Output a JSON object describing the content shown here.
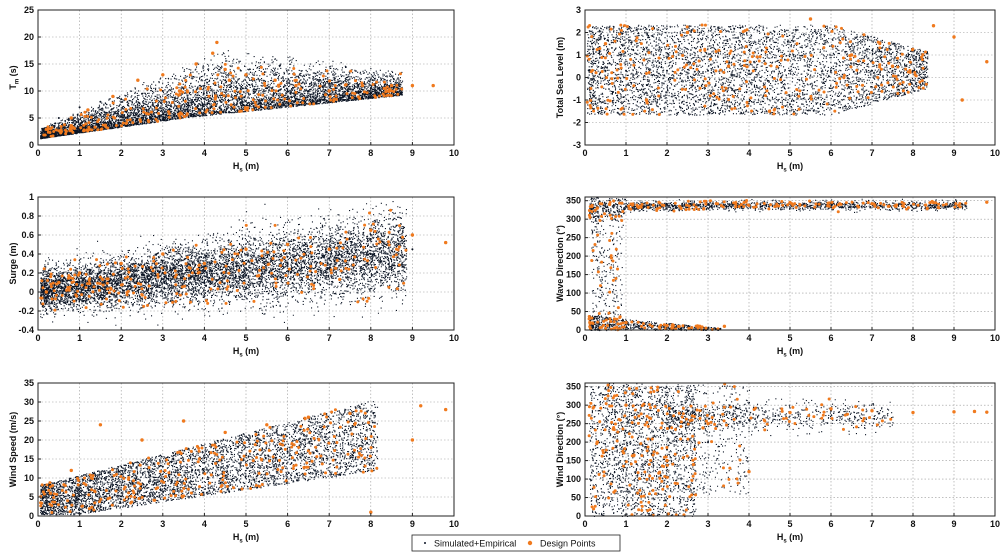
{
  "colors": {
    "simulated": "#0b1424",
    "design": "#f07a1e",
    "grid": "#9a9a9a",
    "frame": "#222222"
  },
  "legend": {
    "simulated_label": "Simulated+Empirical",
    "design_label": "Design Points"
  },
  "chart_data": [
    {
      "type": "scatter",
      "panel": "top-left",
      "ylabel_main": "T",
      "ylabel_sub": "m",
      "ylabel_unit": " (s)",
      "xlabel_main": "H",
      "xlabel_sub": "s",
      "xlabel_unit": " (m)",
      "xlim": [
        0,
        10
      ],
      "ylim": [
        0,
        25
      ],
      "xticks": [
        0,
        1,
        2,
        3,
        4,
        5,
        6,
        7,
        8,
        9,
        10
      ],
      "yticks": [
        0,
        5,
        10,
        15,
        20,
        25
      ],
      "grid": true,
      "series": [
        {
          "role": "simulated",
          "x": [
            0.1,
            0.5,
            1,
            1.5,
            2,
            2.5,
            3,
            3.5,
            4,
            4.5,
            5,
            5.5,
            6,
            6.5,
            7,
            7.5,
            8,
            8.5,
            9
          ],
          "y": [
            3,
            5,
            7,
            8,
            8.5,
            9.5,
            10,
            10.5,
            11,
            12,
            10.5,
            10.5,
            10,
            10,
            10,
            10.3,
            10.5,
            10.7,
            11
          ]
        },
        {
          "role": "design",
          "x": [
            0.3,
            0.8,
            1.2,
            1.8,
            2.4,
            3,
            3.4,
            3.8,
            4.2,
            4.3,
            4.5,
            4.6,
            5,
            5.7,
            6.2,
            7,
            7.8,
            8.5,
            9,
            9.5
          ],
          "y": [
            3,
            5,
            6.5,
            9,
            12,
            13,
            10,
            15,
            17,
            19,
            14,
            12,
            13,
            12,
            11,
            10,
            11,
            11,
            11,
            11
          ]
        }
      ]
    },
    {
      "type": "scatter",
      "panel": "top-right",
      "ylabel_main": "Total Sea Level (m)",
      "ylabel_sub": "",
      "ylabel_unit": "",
      "xlabel_main": "H",
      "xlabel_sub": "s",
      "xlabel_unit": " (m)",
      "xlim": [
        0,
        10
      ],
      "ylim": [
        -3,
        3
      ],
      "xticks": [
        0,
        1,
        2,
        3,
        4,
        5,
        6,
        7,
        8,
        9,
        10
      ],
      "yticks": [
        -3,
        -2,
        -1,
        0,
        1,
        2,
        3
      ],
      "grid": true,
      "series": [
        {
          "role": "simulated",
          "x": [
            0.1,
            0.5,
            1,
            2,
            3,
            4,
            5,
            6,
            7,
            7.5,
            8
          ],
          "y": [
            0.3,
            0.3,
            0.3,
            0.3,
            0.3,
            0.3,
            0.3,
            0.3,
            0.3,
            0.3,
            0.3
          ]
        },
        {
          "role": "design",
          "x": [
            0.5,
            1.5,
            2.5,
            3.5,
            4.5,
            5.5,
            6.5,
            7.5,
            8.5,
            9,
            9.2,
            9.8
          ],
          "y": [
            1.5,
            -1,
            2,
            0.5,
            -1.5,
            2.6,
            1,
            0.5,
            2.3,
            1.8,
            -1,
            0.7
          ]
        }
      ]
    },
    {
      "type": "scatter",
      "panel": "middle-left",
      "ylabel_main": "Surge (m)",
      "ylabel_sub": "",
      "ylabel_unit": "",
      "xlabel_main": "H",
      "xlabel_sub": "s",
      "xlabel_unit": " (m)",
      "xlim": [
        0,
        10
      ],
      "ylim": [
        -0.4,
        1
      ],
      "xticks": [
        0,
        1,
        2,
        3,
        4,
        5,
        6,
        7,
        8,
        9,
        10
      ],
      "yticks": [
        -0.4,
        -0.2,
        0,
        0.2,
        0.4,
        0.6,
        0.8,
        1
      ],
      "grid": true,
      "series": [
        {
          "role": "simulated",
          "x": [
            0.1,
            0.5,
            1,
            2,
            3,
            4,
            5,
            6,
            7,
            8,
            9
          ],
          "y": [
            0.0,
            0.05,
            0.1,
            0.15,
            0.2,
            0.22,
            0.25,
            0.3,
            0.35,
            0.4,
            0.45
          ]
        },
        {
          "role": "design",
          "x": [
            0.2,
            0.5,
            1,
            2,
            3,
            4,
            5,
            6,
            7,
            8,
            9,
            9.8
          ],
          "y": [
            0,
            0.1,
            0.2,
            0.3,
            0.4,
            0.3,
            0.45,
            0.5,
            0.45,
            0.65,
            0.6,
            0.52
          ]
        }
      ]
    },
    {
      "type": "scatter",
      "panel": "middle-right",
      "ylabel_main": "Wave Direction (°)",
      "ylabel_sub": "",
      "ylabel_unit": "",
      "xlabel_main": "H",
      "xlabel_sub": "s",
      "xlabel_unit": " (m)",
      "xlim": [
        0,
        10
      ],
      "ylim": [
        0,
        360
      ],
      "xticks": [
        0,
        1,
        2,
        3,
        4,
        5,
        6,
        7,
        8,
        9,
        10
      ],
      "yticks": [
        0,
        50,
        100,
        150,
        200,
        250,
        300,
        350
      ],
      "grid": true,
      "series": [
        {
          "role": "simulated",
          "x": [
            0.2,
            0.5,
            1,
            2,
            3,
            4,
            5,
            6,
            7,
            8,
            9
          ],
          "y": [
            330,
            335,
            335,
            340,
            340,
            340,
            342,
            342,
            343,
            343,
            344
          ]
        },
        {
          "role": "design",
          "x": [
            0.3,
            0.6,
            1,
            2,
            2.8,
            3.4,
            5,
            7,
            8.5,
            9.8
          ],
          "y": [
            330,
            340,
            20,
            12,
            10,
            10,
            345,
            342,
            345,
            346
          ]
        }
      ]
    },
    {
      "type": "scatter",
      "panel": "bottom-left",
      "ylabel_main": "Wind Speed (m/s)",
      "ylabel_sub": "",
      "ylabel_unit": "",
      "xlabel_main": "H",
      "xlabel_sub": "s",
      "xlabel_unit": " (m)",
      "xlim": [
        0,
        10
      ],
      "ylim": [
        0,
        35
      ],
      "xticks": [
        0,
        1,
        2,
        3,
        4,
        5,
        6,
        7,
        8,
        9,
        10
      ],
      "yticks": [
        0,
        5,
        10,
        15,
        20,
        25,
        30,
        35
      ],
      "grid": true,
      "series": [
        {
          "role": "simulated",
          "x": [
            0.1,
            0.5,
            1,
            2,
            3,
            4,
            5,
            6,
            7,
            8
          ],
          "y": [
            5,
            7,
            9,
            11,
            13,
            14,
            16,
            17,
            19,
            21
          ]
        },
        {
          "role": "design",
          "x": [
            0.3,
            0.8,
            1.5,
            2.5,
            3.5,
            4.5,
            5.5,
            6.5,
            7.5,
            8,
            9,
            9.2,
            9.8
          ],
          "y": [
            6,
            12,
            24,
            20,
            25,
            22,
            24,
            26,
            27,
            1,
            20,
            29,
            28
          ]
        }
      ]
    },
    {
      "type": "scatter",
      "panel": "bottom-right",
      "ylabel_main": "Wind Direction (°)",
      "ylabel_sub": "",
      "ylabel_unit": "",
      "xlabel_main": "H",
      "xlabel_sub": "s",
      "xlabel_unit": " (m)",
      "xlim": [
        0,
        10
      ],
      "ylim": [
        0,
        360
      ],
      "xticks": [
        0,
        1,
        2,
        3,
        4,
        5,
        6,
        7,
        8,
        9,
        10
      ],
      "yticks": [
        0,
        50,
        100,
        150,
        200,
        250,
        300,
        350
      ],
      "grid": true,
      "series": [
        {
          "role": "simulated",
          "x": [
            0.2,
            0.5,
            1,
            2,
            3,
            4,
            5,
            6,
            7
          ],
          "y": [
            180,
            180,
            180,
            180,
            200,
            260,
            280,
            285,
            285
          ]
        },
        {
          "role": "design",
          "x": [
            0.3,
            1,
            2,
            3,
            4,
            5,
            6,
            7,
            8,
            9,
            9.5,
            9.8
          ],
          "y": [
            200,
            300,
            150,
            250,
            120,
            280,
            290,
            285,
            280,
            282,
            283,
            281
          ]
        }
      ]
    }
  ]
}
